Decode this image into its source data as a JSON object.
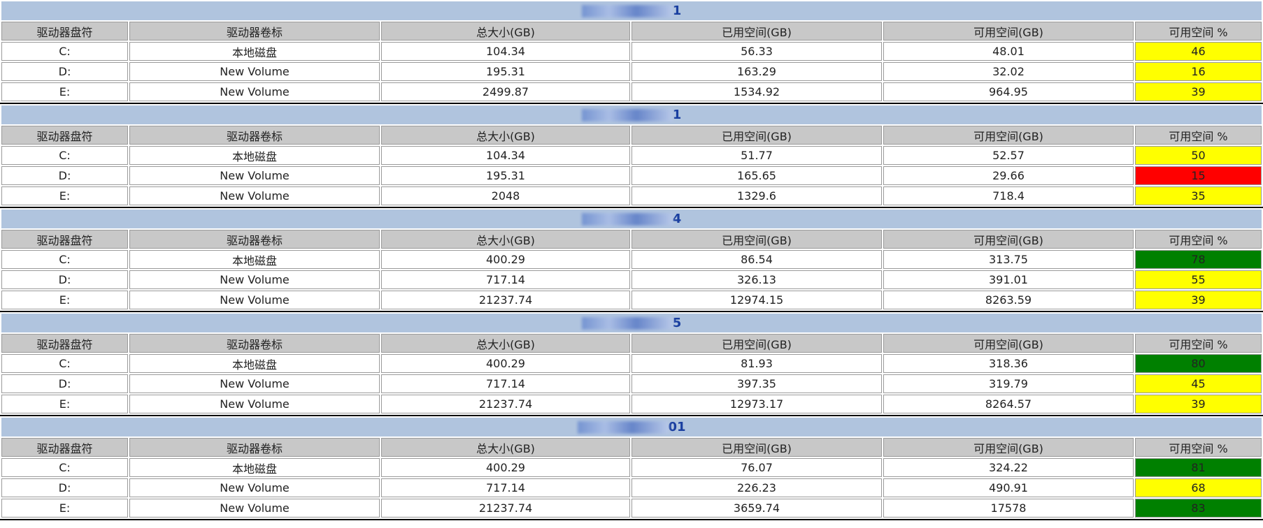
{
  "columns": [
    "驱动器盘符",
    "驱动器卷标",
    "总大小(GB)",
    "已用空间(GB)",
    "可用空间(GB)",
    "可用空间 %"
  ],
  "servers": [
    {
      "title": "1",
      "rows": [
        [
          "C:",
          "本地磁盘",
          104.34,
          56.33,
          48.01,
          46
        ],
        [
          "D:",
          "New Volume",
          195.31,
          163.29,
          32.02,
          16
        ],
        [
          "E:",
          "New Volume",
          2499.87,
          1534.92,
          964.95,
          39
        ]
      ],
      "colors": [
        "#ffff00",
        "#ffff00",
        "#ffff00"
      ]
    },
    {
      "title": "1",
      "rows": [
        [
          "C:",
          "本地磁盘",
          104.34,
          51.77,
          52.57,
          50
        ],
        [
          "D:",
          "New Volume",
          195.31,
          165.65,
          29.66,
          15
        ],
        [
          "E:",
          "New Volume",
          2048,
          1329.6,
          718.4,
          35
        ]
      ],
      "colors": [
        "#ffff00",
        "#ff0000",
        "#ffff00"
      ]
    },
    {
      "title": "4",
      "rows": [
        [
          "C:",
          "本地磁盘",
          400.29,
          86.54,
          313.75,
          78
        ],
        [
          "D:",
          "New Volume",
          717.14,
          326.13,
          391.01,
          55
        ],
        [
          "E:",
          "New Volume",
          21237.74,
          12974.15,
          8263.59,
          39
        ]
      ],
      "colors": [
        "#008000",
        "#ffff00",
        "#ffff00"
      ]
    },
    {
      "title": "5",
      "rows": [
        [
          "C:",
          "本地磁盘",
          400.29,
          81.93,
          318.36,
          80
        ],
        [
          "D:",
          "New Volume",
          717.14,
          397.35,
          319.79,
          45
        ],
        [
          "E:",
          "New Volume",
          21237.74,
          12973.17,
          8264.57,
          39
        ]
      ],
      "colors": [
        "#008000",
        "#ffff00",
        "#ffff00"
      ]
    },
    {
      "title": "01",
      "rows": [
        [
          "C:",
          "本地磁盘",
          400.29,
          76.07,
          324.22,
          81
        ],
        [
          "D:",
          "New Volume",
          717.14,
          226.23,
          490.91,
          68
        ],
        [
          "E:",
          "New Volume",
          21237.74,
          3659.74,
          17578,
          83
        ]
      ],
      "colors": [
        "#008000",
        "#ffff00",
        "#008000"
      ]
    }
  ]
}
